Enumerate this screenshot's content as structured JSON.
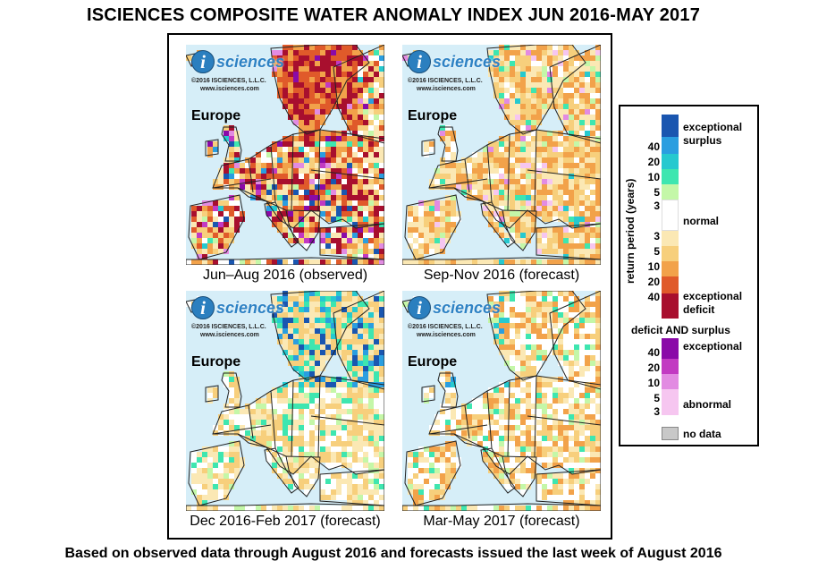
{
  "title": "ISCIENCES COMPOSITE WATER ANOMALY INDEX JUN 2016-MAY 2017",
  "footer": "Based on observed data through August 2016 and forecasts issued the last week of August 2016",
  "logo": {
    "letter": "i",
    "name": "sciences",
    "copyright": "©2016 ISCIENCES, L.L.C.",
    "url": "www.isciences.com"
  },
  "panels": [
    {
      "region": "Europe",
      "caption": "Jun–Aug 2016 (observed)",
      "pattern": "observed"
    },
    {
      "region": "Europe",
      "caption": "Sep-Nov 2016 (forecast)",
      "pattern": "fall"
    },
    {
      "region": "Europe",
      "caption": "Dec 2016-Feb 2017 (forecast)",
      "pattern": "winter"
    },
    {
      "region": "Europe",
      "caption": "Mar-May 2017 (forecast)",
      "pattern": "spring"
    }
  ],
  "legend": {
    "axis_label": "return period (years)",
    "surplus_label": "exceptional surplus",
    "surplus_label_1": "exceptional",
    "surplus_label_2": "surplus",
    "normal_label": "normal",
    "deficit_label_1": "exceptional",
    "deficit_label_2": "deficit",
    "both_title": "deficit AND surplus",
    "both_exceptional": "exceptional",
    "both_abnormal": "abnormal",
    "nodata": "no data",
    "surplus_ticks": [
      "40",
      "20",
      "10",
      "5",
      "3"
    ],
    "deficit_ticks": [
      "3",
      "5",
      "10",
      "20",
      "40"
    ],
    "both_ticks": [
      "40",
      "20",
      "10",
      "5",
      "3"
    ],
    "surplus_colors": [
      "#1a56b0",
      "#2a9ee0",
      "#26c9cf",
      "#3ee6b0",
      "#c4f7a8"
    ],
    "deficit_colors": [
      "#fbe8b4",
      "#f7cf7c",
      "#f2a24a",
      "#e05a2a",
      "#a80f2e"
    ],
    "both_colors": [
      "#8a0aa8",
      "#c23ac2",
      "#e28be2",
      "#f6c6f0"
    ],
    "normal_color": "#ffffff",
    "nodata_color": "#c8c8c8",
    "ocean_color": "#d6eef8",
    "land_base_color": "#fbe8c8"
  }
}
